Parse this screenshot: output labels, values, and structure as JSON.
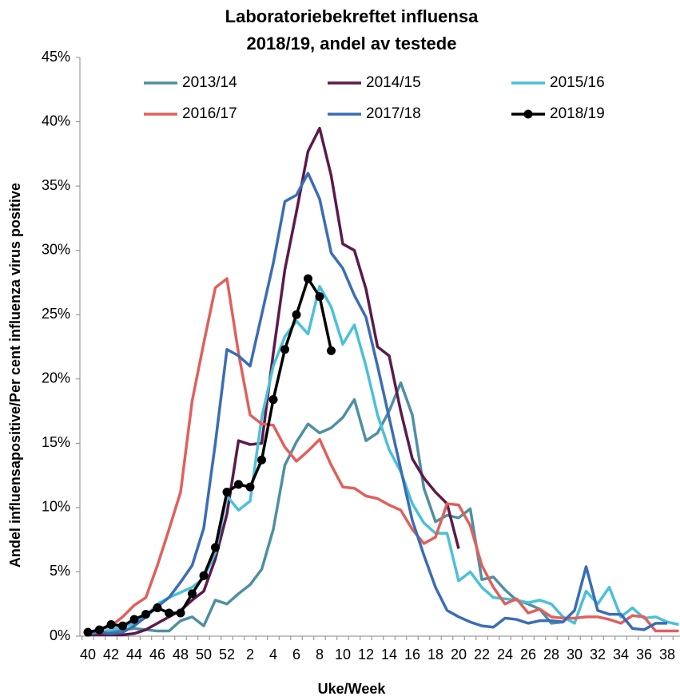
{
  "chart_data": {
    "type": "line",
    "title": [
      "Laboratoriebekreftet influensa",
      "2018/19, andel av testede"
    ],
    "x_label": "Uke/Week",
    "y_label": "Andel influensapositive/Per cent influenza virus positive",
    "categories": [
      "40",
      null,
      "42",
      null,
      "44",
      null,
      "46",
      null,
      "48",
      null,
      "50",
      null,
      "52",
      null,
      "2",
      null,
      "4",
      null,
      "6",
      null,
      "8",
      null,
      "10",
      null,
      "12",
      null,
      "14",
      null,
      "16",
      null,
      "18",
      null,
      "20",
      null,
      "22",
      null,
      "24",
      null,
      "26",
      null,
      "28",
      null,
      "30",
      null,
      "32",
      null,
      "34",
      null,
      "36",
      null,
      "38",
      null
    ],
    "ylim": [
      0,
      45
    ],
    "yticks": [
      {
        "value": 0,
        "label": "0%"
      },
      {
        "value": 5,
        "label": "5%"
      },
      {
        "value": 10,
        "label": "10%"
      },
      {
        "value": 15,
        "label": "15%"
      },
      {
        "value": 20,
        "label": "20%"
      },
      {
        "value": 25,
        "label": "25%"
      },
      {
        "value": 30,
        "label": "30%"
      },
      {
        "value": 35,
        "label": "35%"
      },
      {
        "value": 40,
        "label": "40%"
      },
      {
        "value": 45,
        "label": "45%"
      }
    ],
    "grid": false,
    "series": [
      {
        "name": "2013/14",
        "color": "#4f8fa3",
        "values": [
          0.4,
          0.3,
          0.3,
          0.5,
          0.6,
          0.5,
          0.4,
          0.4,
          1.2,
          1.5,
          0.8,
          2.8,
          2.5,
          3.3,
          4.0,
          5.2,
          8.3,
          13.3,
          15.1,
          16.5,
          15.8,
          16.2,
          17.0,
          18.4,
          15.2,
          15.8,
          17.5,
          19.7,
          17.2,
          11.5,
          8.9,
          9.4,
          9.2,
          9.9,
          4.4,
          4.6,
          3.6,
          2.8,
          2.5,
          2.1,
          1.0,
          1.1,
          null,
          null,
          null,
          null,
          null,
          null,
          null,
          null,
          null,
          null
        ]
      },
      {
        "name": "2014/15",
        "color": "#5c1a4a",
        "values": [
          0.1,
          0.1,
          0.1,
          0.1,
          0.2,
          0.5,
          1.0,
          1.5,
          2.0,
          2.8,
          3.5,
          6.0,
          9.5,
          15.2,
          14.9,
          15.0,
          22.0,
          28.5,
          33.0,
          37.7,
          39.5,
          35.8,
          30.5,
          30.0,
          27.0,
          22.5,
          21.8,
          17.5,
          13.8,
          12.3,
          11.2,
          10.3,
          6.8,
          null,
          null,
          null,
          null,
          null,
          null,
          null,
          null,
          null,
          null,
          null,
          null,
          null,
          null,
          null,
          null,
          null,
          null,
          null
        ]
      },
      {
        "name": "2015/16",
        "color": "#4bc0d9",
        "values": [
          0.2,
          0.3,
          0.5,
          0.7,
          1.0,
          1.5,
          2.5,
          3.0,
          3.4,
          3.8,
          4.5,
          6.5,
          10.9,
          9.8,
          10.5,
          17.0,
          21.0,
          23.3,
          24.5,
          23.5,
          27.2,
          25.6,
          22.7,
          24.2,
          21.0,
          17.2,
          14.5,
          12.8,
          10.3,
          8.8,
          8.0,
          8.0,
          4.3,
          5.0,
          3.8,
          3.0,
          2.9,
          2.8,
          2.6,
          2.8,
          2.5,
          1.5,
          1.0,
          3.5,
          2.5,
          3.8,
          1.5,
          2.2,
          1.4,
          1.5,
          1.1,
          0.9
        ]
      },
      {
        "name": "2016/17",
        "color": "#e0605c",
        "values": [
          0.3,
          0.5,
          0.8,
          1.5,
          2.4,
          3.0,
          5.5,
          8.3,
          11.2,
          18.3,
          22.8,
          27.1,
          27.8,
          22.0,
          17.2,
          16.5,
          16.4,
          14.7,
          13.6,
          14.4,
          15.3,
          13.3,
          11.6,
          11.5,
          10.9,
          10.7,
          10.2,
          9.8,
          8.3,
          7.2,
          7.7,
          10.3,
          10.2,
          8.6,
          5.5,
          3.8,
          2.5,
          2.9,
          1.8,
          2.1,
          1.5,
          1.4,
          1.4,
          1.5,
          1.5,
          1.3,
          1.0,
          1.6,
          1.5,
          0.4,
          0.4,
          0.4
        ]
      },
      {
        "name": "2017/18",
        "color": "#3a6db5",
        "values": [
          0.3,
          0.3,
          0.2,
          0.3,
          0.8,
          1.5,
          2.3,
          3.0,
          4.2,
          5.5,
          8.4,
          15.0,
          22.3,
          21.8,
          21.0,
          25.0,
          29.0,
          33.8,
          34.3,
          36.0,
          34.0,
          29.8,
          28.6,
          26.5,
          24.8,
          21.0,
          17.0,
          13.0,
          9.0,
          6.3,
          3.8,
          2.0,
          1.5,
          1.1,
          0.8,
          0.7,
          1.4,
          1.3,
          1.0,
          1.2,
          1.2,
          1.1,
          2.0,
          5.4,
          2.0,
          1.7,
          1.7,
          0.6,
          0.5,
          1.0,
          1.0,
          null
        ]
      },
      {
        "name": "2018/19",
        "color": "#000000",
        "marker": true,
        "values": [
          0.3,
          0.5,
          0.9,
          0.8,
          1.3,
          1.7,
          2.2,
          1.8,
          1.8,
          3.3,
          4.7,
          6.9,
          11.2,
          11.8,
          11.6,
          13.7,
          18.4,
          22.3,
          25.0,
          27.8,
          26.4,
          22.2,
          null,
          null,
          null,
          null,
          null,
          null,
          null,
          null,
          null,
          null,
          null,
          null,
          null,
          null,
          null,
          null,
          null,
          null,
          null,
          null,
          null,
          null,
          null,
          null,
          null,
          null,
          null,
          null,
          null,
          null
        ]
      }
    ]
  }
}
